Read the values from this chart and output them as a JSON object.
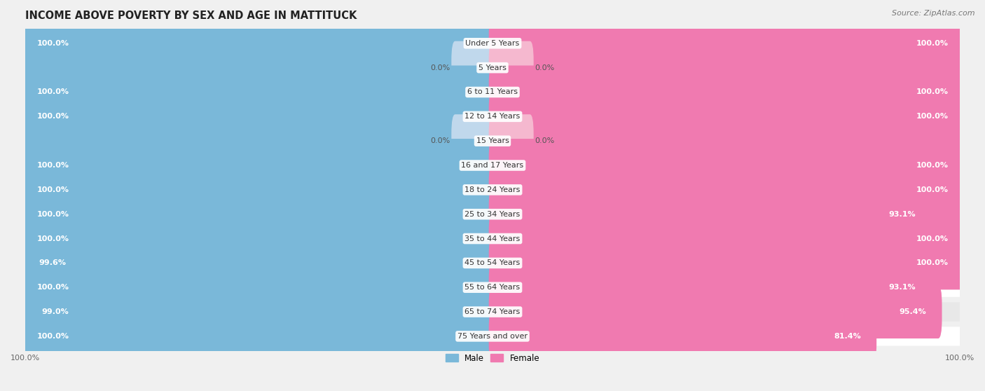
{
  "title": "INCOME ABOVE POVERTY BY SEX AND AGE IN MATTITUCK",
  "source": "Source: ZipAtlas.com",
  "categories": [
    "Under 5 Years",
    "5 Years",
    "6 to 11 Years",
    "12 to 14 Years",
    "15 Years",
    "16 and 17 Years",
    "18 to 24 Years",
    "25 to 34 Years",
    "35 to 44 Years",
    "45 to 54 Years",
    "55 to 64 Years",
    "65 to 74 Years",
    "75 Years and over"
  ],
  "male": [
    100.0,
    0.0,
    100.0,
    100.0,
    0.0,
    100.0,
    100.0,
    100.0,
    100.0,
    99.6,
    100.0,
    99.0,
    100.0
  ],
  "female": [
    100.0,
    0.0,
    100.0,
    100.0,
    0.0,
    100.0,
    100.0,
    93.1,
    100.0,
    100.0,
    93.1,
    95.4,
    81.4
  ],
  "male_color": "#7ab8d9",
  "female_color": "#f07ab0",
  "male_color_light": "#c0d8ec",
  "female_color_light": "#f5b8cf",
  "bg_color": "#f0f0f0",
  "row_color_even": "#ffffff",
  "row_color_odd": "#e8e8e8",
  "title_fontsize": 10.5,
  "source_fontsize": 8,
  "label_fontsize": 8,
  "category_fontsize": 8,
  "zero_stub": 8.0,
  "legend_label_male": "Male",
  "legend_label_female": "Female"
}
